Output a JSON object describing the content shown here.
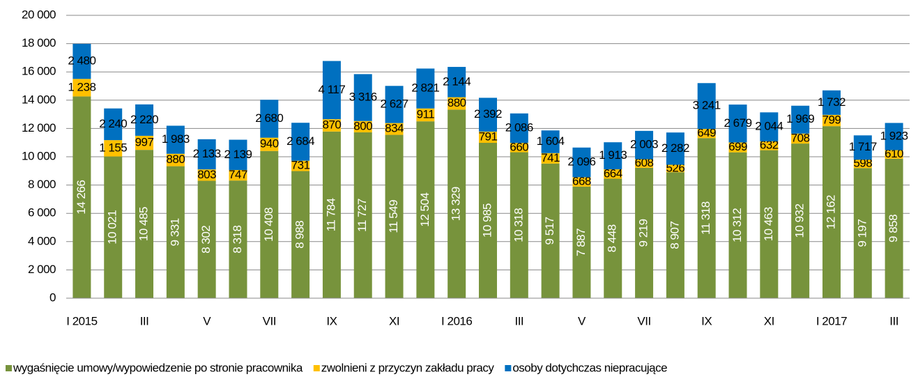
{
  "chart_data": {
    "type": "stacked_bar",
    "categories": [
      "I 2015",
      null,
      "III",
      null,
      "V",
      null,
      "VII",
      null,
      "IX",
      null,
      "XI",
      null,
      "I 2016",
      null,
      "III",
      null,
      "V",
      null,
      "VII",
      null,
      "IX",
      null,
      "XI",
      null,
      "I 2017",
      null,
      "III"
    ],
    "series": [
      {
        "name": "wygaśnięcie umowy/wypowiedzenie po stronie pracownika",
        "color": "#77933c",
        "values": [
          14266,
          10021,
          10485,
          9331,
          8302,
          8318,
          10408,
          8988,
          11784,
          11727,
          11549,
          12504,
          13329,
          10985,
          10318,
          9517,
          7887,
          8448,
          9219,
          8907,
          11318,
          10312,
          10463,
          10932,
          12162,
          9197,
          9858
        ],
        "value_labels": [
          "14 266",
          "10 021",
          "10 485",
          "9 331",
          "8 302",
          "8 318",
          "10 408",
          "8 988",
          "11 784",
          "11 727",
          "11 549",
          "12 504",
          "13 329",
          "10 985",
          "10 318",
          "9 517",
          "7 887",
          "8 448",
          "9 219",
          "8 907",
          "11 318",
          "10 312",
          "10 463",
          "10 932",
          "12 162",
          "9 197",
          "9 858"
        ]
      },
      {
        "name": "zwolnieni z przyczyn zakładu pracy",
        "color": "#ffc000",
        "values": [
          1238,
          1155,
          997,
          880,
          803,
          747,
          940,
          731,
          870,
          800,
          834,
          911,
          880,
          791,
          660,
          741,
          668,
          664,
          608,
          526,
          649,
          699,
          632,
          708,
          799,
          598,
          610
        ],
        "value_labels": [
          "1 238",
          "1 155",
          "997",
          "880",
          "803",
          "747",
          "940",
          "731",
          "870",
          "800",
          "834",
          "911",
          "880",
          "791",
          "660",
          "741",
          "668",
          "664",
          "608",
          "526",
          "649",
          "699",
          "632",
          "708",
          "799",
          "598",
          "610"
        ]
      },
      {
        "name": "osoby dotychczas niepracujące",
        "color": "#0070c0",
        "values": [
          2480,
          2240,
          2220,
          1983,
          2133,
          2139,
          2680,
          2684,
          4117,
          3316,
          2627,
          2821,
          2144,
          2392,
          2086,
          1604,
          2096,
          1913,
          2003,
          2282,
          3241,
          2679,
          2044,
          1969,
          1732,
          1717,
          1923
        ],
        "value_labels": [
          "2 480",
          "2 240",
          "2 220",
          "1 983",
          "2 133",
          "2 139",
          "2 680",
          "2 684",
          "4 117",
          "3 316",
          "2 627",
          "2 821",
          "2 144",
          "2 392",
          "2 086",
          "1 604",
          "2 096",
          "1 913",
          "2 003",
          "2 282",
          "3 241",
          "2 679",
          "2 044",
          "1 969",
          "1 732",
          "1 717",
          "1 923"
        ]
      }
    ],
    "ylim": [
      0,
      20000
    ],
    "yticks": [
      0,
      {
        "value": 2000,
        "label": "2 000"
      },
      {
        "value": 4000,
        "label": "4 000"
      },
      {
        "value": 6000,
        "label": "6 000"
      },
      {
        "value": 8000,
        "label": "8 000"
      },
      {
        "value": 10000,
        "label": "10 000"
      },
      {
        "value": 12000,
        "label": "12 000"
      },
      {
        "value": 14000,
        "label": "14 000"
      },
      {
        "value": 16000,
        "label": "16 000"
      },
      {
        "value": 18000,
        "label": "18 000"
      },
      {
        "value": 20000,
        "label": "20 000"
      }
    ],
    "grid": true,
    "legend": "bottom"
  }
}
